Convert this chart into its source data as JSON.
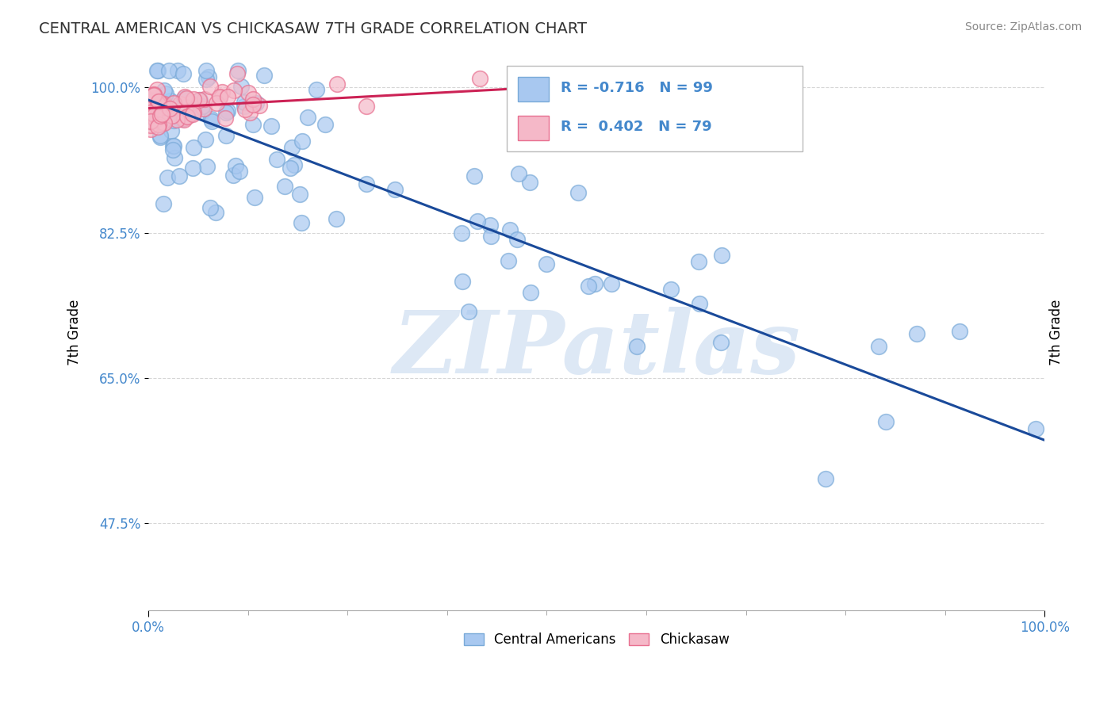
{
  "title": "CENTRAL AMERICAN VS CHICKASAW 7TH GRADE CORRELATION CHART",
  "source_text": "Source: ZipAtlas.com",
  "ylabel": "7th Grade",
  "legend_blue_label": "Central Americans",
  "legend_pink_label": "Chickasaw",
  "R_blue": -0.716,
  "N_blue": 99,
  "R_pink": 0.402,
  "N_pink": 79,
  "xlim": [
    0.0,
    1.0
  ],
  "ylim": [
    0.37,
    1.04
  ],
  "yticks": [
    0.475,
    0.65,
    0.825,
    1.0
  ],
  "ytick_labels": [
    "47.5%",
    "65.0%",
    "82.5%",
    "100.0%"
  ],
  "xticks": [
    0.0,
    1.0
  ],
  "xtick_labels": [
    "0.0%",
    "100.0%"
  ],
  "blue_color": "#a8c8f0",
  "blue_edge_color": "#7aaad8",
  "pink_color": "#f5b8c8",
  "pink_edge_color": "#e87090",
  "trend_blue_color": "#1a4a9a",
  "trend_pink_color": "#cc2255",
  "watermark_text": "ZIPatlas",
  "watermark_color": "#dde8f5",
  "background_color": "#ffffff",
  "grid_color": "#cccccc",
  "title_color": "#333333",
  "source_color": "#888888",
  "yticklabel_color": "#4488cc",
  "xticklabel_color": "#4488cc",
  "legend_text_color": "#4488cc",
  "blue_trend_x0": 0.0,
  "blue_trend_y0": 0.985,
  "blue_trend_x1": 1.0,
  "blue_trend_y1": 0.575,
  "pink_trend_x0": 0.0,
  "pink_trend_y0": 0.975,
  "pink_trend_x1": 0.52,
  "pink_trend_y1": 1.005
}
